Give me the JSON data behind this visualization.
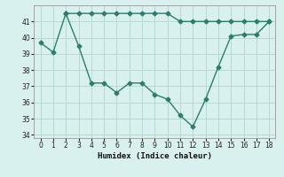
{
  "series1_x": [
    2,
    3,
    4,
    5,
    6,
    7,
    8,
    9,
    10,
    11,
    12,
    13,
    14,
    15,
    16,
    17,
    18
  ],
  "series1_y": [
    41.5,
    41.5,
    41.5,
    41.5,
    41.5,
    41.5,
    41.5,
    41.5,
    41.5,
    41.0,
    41.0,
    41.0,
    41.0,
    41.0,
    41.0,
    41.0,
    41.0
  ],
  "series2_x": [
    0,
    1,
    2,
    3,
    4,
    5,
    6,
    7,
    8,
    9,
    10,
    11,
    12,
    13,
    14,
    15,
    16,
    17,
    18
  ],
  "series2_y": [
    39.7,
    39.1,
    41.5,
    39.5,
    37.2,
    37.2,
    36.6,
    37.2,
    37.2,
    36.5,
    36.2,
    35.2,
    34.5,
    36.2,
    38.2,
    40.1,
    40.2,
    40.2,
    41.0
  ],
  "color": "#2d7d6e",
  "background_color": "#d8f0ee",
  "grid_color": "#b8d8d4",
  "xlabel": "Humidex (Indice chaleur)",
  "ylim": [
    33.8,
    42.0
  ],
  "xlim": [
    -0.5,
    18.5
  ],
  "yticks": [
    34,
    35,
    36,
    37,
    38,
    39,
    40,
    41
  ],
  "xticks": [
    0,
    1,
    2,
    3,
    4,
    5,
    6,
    7,
    8,
    9,
    10,
    11,
    12,
    13,
    14,
    15,
    16,
    17,
    18
  ],
  "figsize": [
    3.2,
    2.0
  ],
  "dpi": 100
}
